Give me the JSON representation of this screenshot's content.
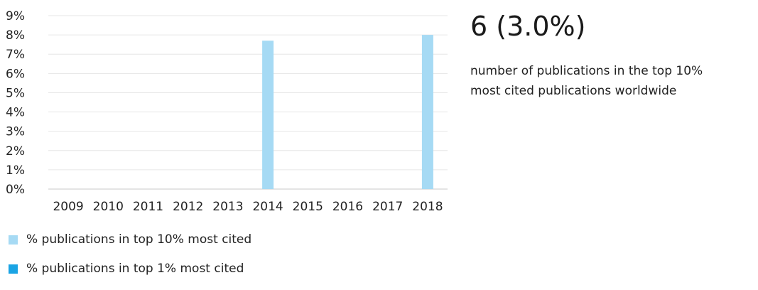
{
  "chart_data": {
    "type": "bar",
    "categories": [
      "2009",
      "2010",
      "2011",
      "2012",
      "2013",
      "2014",
      "2015",
      "2016",
      "2017",
      "2018"
    ],
    "series": [
      {
        "name": "% publications in top 10% most cited",
        "values": [
          0,
          0,
          0,
          0,
          0,
          7.7,
          0,
          0,
          0,
          8.0
        ],
        "color": "#a6daf4"
      },
      {
        "name": "% publications in top 1% most cited",
        "values": [
          0,
          0,
          0,
          0,
          0,
          0,
          0,
          0,
          0,
          0
        ],
        "color": "#1aa4e4"
      }
    ],
    "ylim": [
      0,
      9
    ],
    "yticks": [
      "0%",
      "1%",
      "2%",
      "3%",
      "4%",
      "5%",
      "6%",
      "7%",
      "8%",
      "9%"
    ],
    "grid": true,
    "legend_position": "bottom-left"
  },
  "stat": {
    "value": "6 (3.0%)",
    "line1": "number of publications in the top 10%",
    "line2": "most cited publications worldwide"
  },
  "legend": [
    {
      "label": "% publications in top 10% most cited",
      "color": "#a6daf4"
    },
    {
      "label": "% publications in top 1% most cited",
      "color": "#1aa4e4"
    }
  ]
}
